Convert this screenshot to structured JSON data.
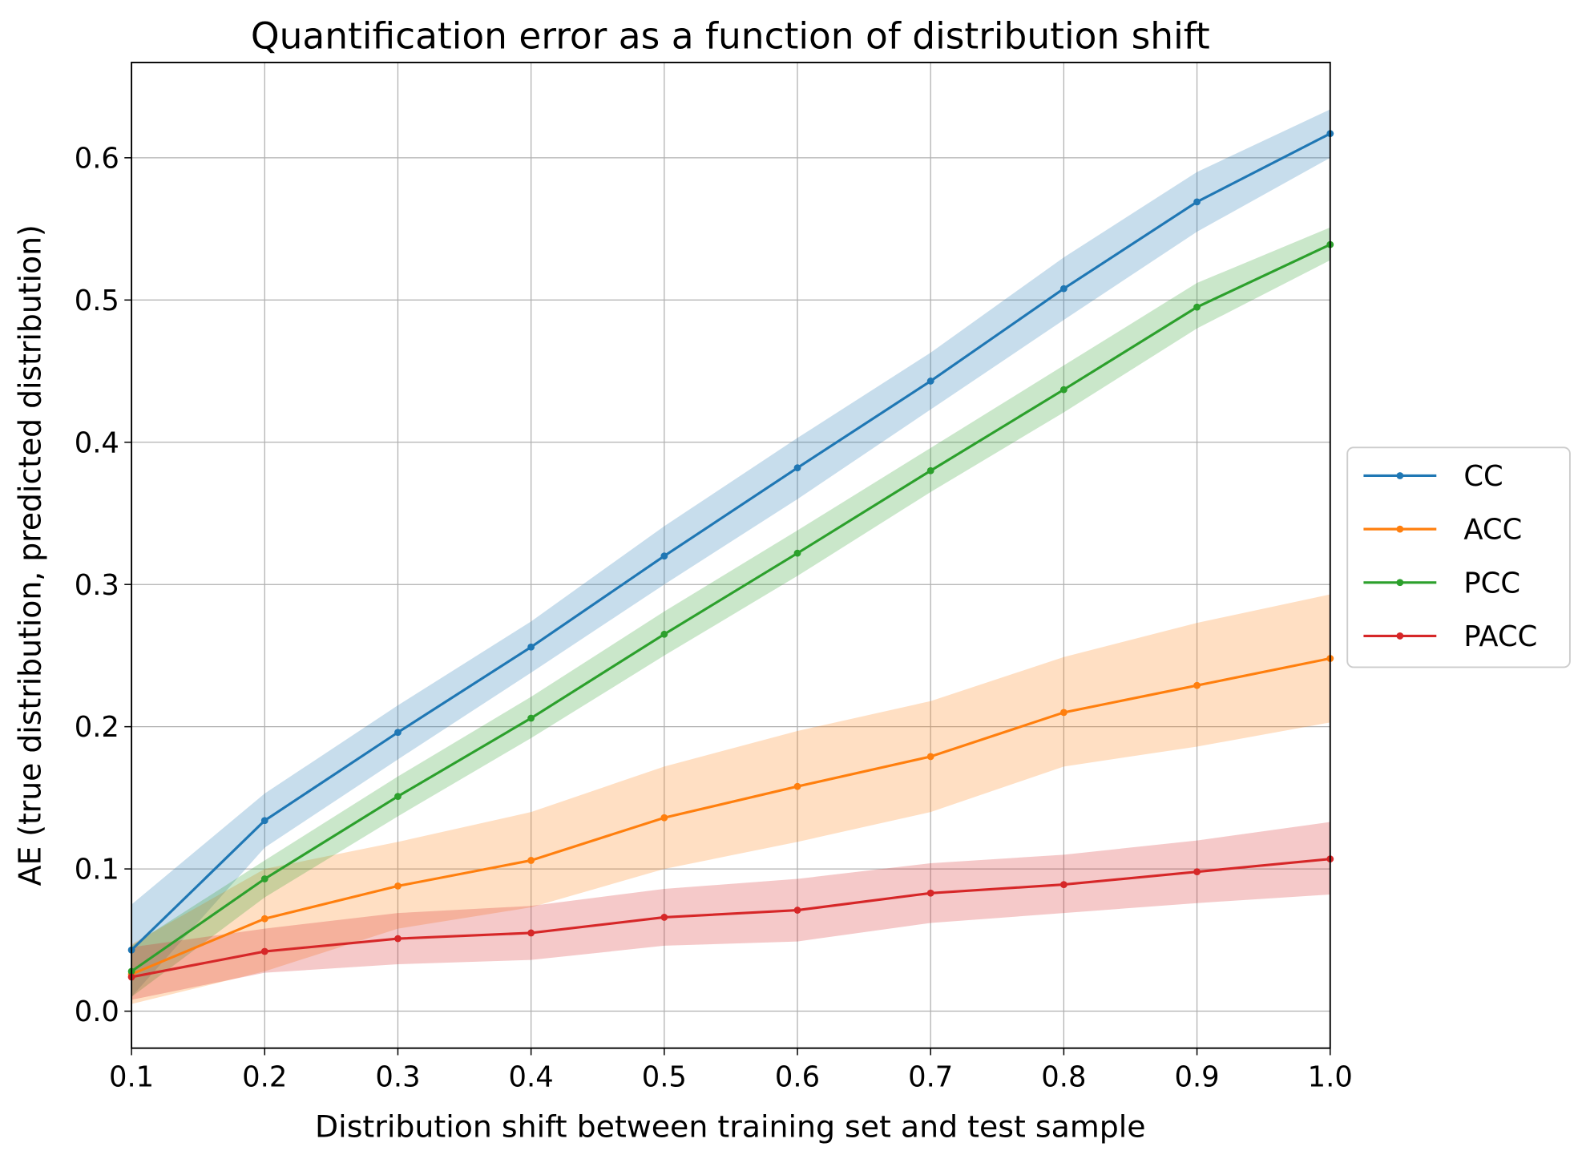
{
  "chart_data": {
    "type": "line",
    "title": "Quantification error as a function of distribution shift",
    "xlabel": "Distribution shift between training set and test sample",
    "ylabel": "AE (true distribution, predicted distribution)",
    "x": [
      0.1,
      0.2,
      0.3,
      0.4,
      0.5,
      0.6,
      0.7,
      0.8,
      0.9,
      1.0
    ],
    "xlim": [
      0.1,
      1.0
    ],
    "ylim": [
      -0.026,
      0.667
    ],
    "xticks": [
      "0.1",
      "0.2",
      "0.3",
      "0.4",
      "0.5",
      "0.6",
      "0.7",
      "0.8",
      "0.9",
      "1.0"
    ],
    "yticks": [
      "0.0",
      "0.1",
      "0.2",
      "0.3",
      "0.4",
      "0.5",
      "0.6"
    ],
    "grid": true,
    "legend_position": "outside-right",
    "series": [
      {
        "name": "CC",
        "color": "#1f77b4",
        "values": [
          0.043,
          0.134,
          0.196,
          0.256,
          0.32,
          0.382,
          0.443,
          0.508,
          0.569,
          0.617
        ],
        "lower": [
          0.01,
          0.115,
          0.177,
          0.238,
          0.3,
          0.36,
          0.423,
          0.486,
          0.548,
          0.6
        ],
        "upper": [
          0.075,
          0.153,
          0.215,
          0.274,
          0.341,
          0.403,
          0.463,
          0.53,
          0.59,
          0.634
        ]
      },
      {
        "name": "ACC",
        "color": "#ff7f0e",
        "values": [
          0.026,
          0.065,
          0.088,
          0.106,
          0.136,
          0.158,
          0.179,
          0.21,
          0.229,
          0.248
        ],
        "lower": [
          0.005,
          0.028,
          0.058,
          0.073,
          0.1,
          0.119,
          0.14,
          0.172,
          0.186,
          0.203
        ],
        "upper": [
          0.047,
          0.1,
          0.119,
          0.14,
          0.172,
          0.197,
          0.218,
          0.249,
          0.273,
          0.293
        ]
      },
      {
        "name": "PCC",
        "color": "#2ca02c",
        "values": [
          0.028,
          0.093,
          0.151,
          0.206,
          0.265,
          0.322,
          0.38,
          0.437,
          0.495,
          0.539
        ],
        "lower": [
          0.01,
          0.08,
          0.137,
          0.192,
          0.25,
          0.306,
          0.365,
          0.421,
          0.48,
          0.528
        ],
        "upper": [
          0.046,
          0.106,
          0.165,
          0.221,
          0.281,
          0.338,
          0.396,
          0.454,
          0.512,
          0.551
        ]
      },
      {
        "name": "PACC",
        "color": "#d62728",
        "values": [
          0.024,
          0.042,
          0.051,
          0.055,
          0.066,
          0.071,
          0.083,
          0.089,
          0.098,
          0.107
        ],
        "lower": [
          0.008,
          0.027,
          0.033,
          0.036,
          0.046,
          0.049,
          0.062,
          0.069,
          0.076,
          0.082
        ],
        "upper": [
          0.045,
          0.058,
          0.069,
          0.074,
          0.086,
          0.093,
          0.104,
          0.11,
          0.12,
          0.133
        ]
      }
    ]
  }
}
